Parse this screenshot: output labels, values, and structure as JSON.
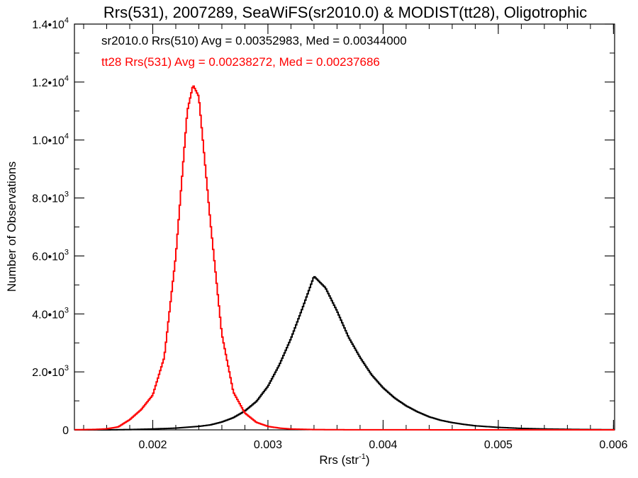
{
  "chart_data": {
    "type": "line",
    "title": "Rrs(531), 2007289, SeaWiFS(sr2010.0) & MODIST(tt28), Oligotrophic",
    "xlabel_base": "Rrs (str",
    "xlabel_sup": "-1",
    "xlabel_end": ")",
    "ylabel": "Number of Observations",
    "xlim": [
      0.00132,
      0.00601
    ],
    "ylim": [
      0,
      14000
    ],
    "xticks": [
      {
        "value": 0.002,
        "label": "0.002"
      },
      {
        "value": 0.003,
        "label": "0.003"
      },
      {
        "value": 0.004,
        "label": "0.004"
      },
      {
        "value": 0.005,
        "label": "0.005"
      },
      {
        "value": 0.006,
        "label": "0.006"
      }
    ],
    "yticks": [
      {
        "value": 0,
        "mant": "0",
        "exp": ""
      },
      {
        "value": 2000,
        "mant": "2.0•10",
        "exp": "3"
      },
      {
        "value": 4000,
        "mant": "4.0•10",
        "exp": "3"
      },
      {
        "value": 6000,
        "mant": "6.0•10",
        "exp": "3"
      },
      {
        "value": 8000,
        "mant": "8.0•10",
        "exp": "3"
      },
      {
        "value": 10000,
        "mant": "1.0•10",
        "exp": "4"
      },
      {
        "value": 12000,
        "mant": "1.2•10",
        "exp": "4"
      },
      {
        "value": 14000,
        "mant": "1.4•10",
        "exp": "4"
      }
    ],
    "annotations": [
      {
        "text": "sr2010.0 Rrs(510) Avg = 0.00352983, Med = 0.00344000",
        "color": "#000000"
      },
      {
        "text": "tt28 Rrs(531) Avg = 0.00238272, Med = 0.00237686",
        "color": "#ff0000"
      }
    ],
    "series": [
      {
        "color": "#000000",
        "x": [
          0.00135,
          0.0016,
          0.0018,
          0.002,
          0.0022,
          0.0024,
          0.0025,
          0.0026,
          0.0027,
          0.0028,
          0.0029,
          0.003,
          0.0031,
          0.0032,
          0.0033,
          0.0034,
          0.0035,
          0.0036,
          0.0037,
          0.0038,
          0.0039,
          0.004,
          0.0041,
          0.0042,
          0.0043,
          0.0044,
          0.0045,
          0.0046,
          0.0047,
          0.0048,
          0.005,
          0.0052,
          0.0054,
          0.0056,
          0.0058,
          0.006
        ],
        "values": [
          0,
          0,
          10,
          30,
          60,
          120,
          170,
          270,
          420,
          650,
          980,
          1500,
          2250,
          3150,
          4200,
          5300,
          4900,
          4100,
          3200,
          2500,
          1900,
          1450,
          1100,
          830,
          620,
          450,
          330,
          250,
          190,
          140,
          85,
          50,
          30,
          18,
          10,
          5
        ]
      },
      {
        "color": "#ff0000",
        "x": [
          0.00135,
          0.0015,
          0.0016,
          0.0017,
          0.0018,
          0.0019,
          0.002,
          0.0021,
          0.0022,
          0.0023,
          0.00235,
          0.0024,
          0.0025,
          0.0026,
          0.0027,
          0.0028,
          0.0029,
          0.003,
          0.0031,
          0.0032,
          0.0034,
          0.0036,
          0.004,
          0.005,
          0.006
        ],
        "values": [
          5,
          15,
          35,
          100,
          350,
          700,
          1200,
          2500,
          6000,
          11000,
          11900,
          11500,
          7200,
          3300,
          1300,
          580,
          260,
          120,
          60,
          30,
          10,
          5,
          2,
          1,
          0
        ]
      }
    ]
  }
}
